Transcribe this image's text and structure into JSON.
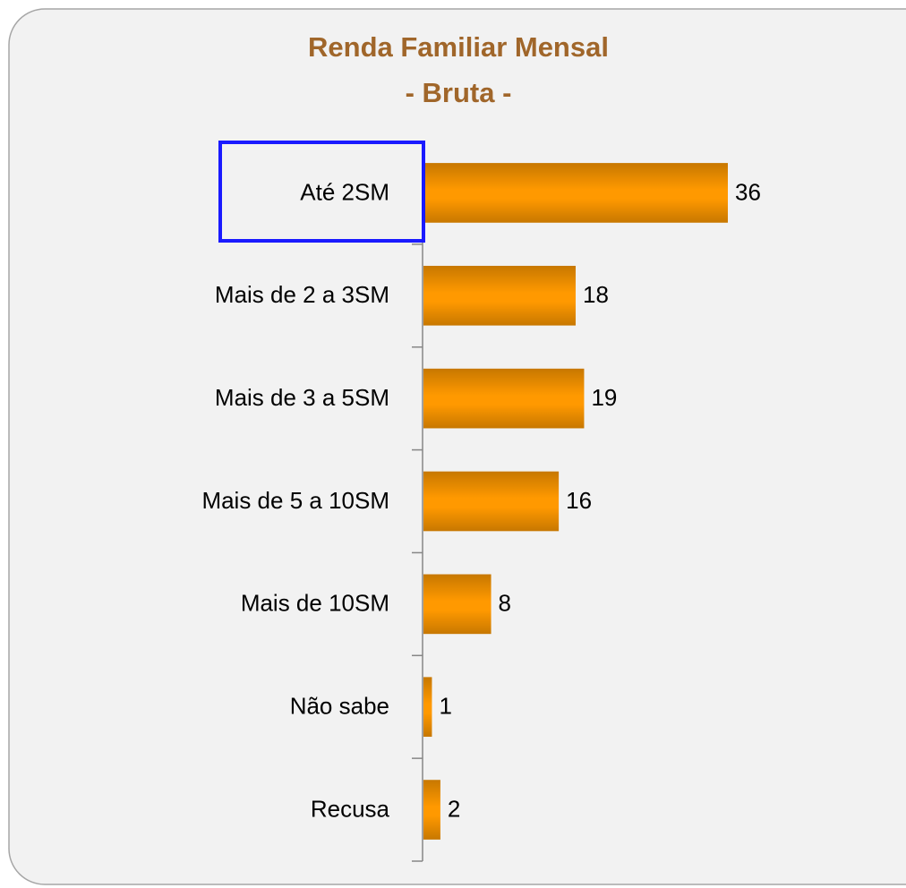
{
  "chart_data": {
    "type": "bar",
    "orientation": "horizontal",
    "title": [
      "Renda Familiar Mensal",
      "- Bruta -"
    ],
    "categories": [
      "Até 2SM",
      "Mais de 2 a 3SM",
      "Mais de 3 a 5SM",
      "Mais de 5 a 10SM",
      "Mais de 10SM",
      "Não sabe",
      "Recusa"
    ],
    "values": [
      36,
      18,
      19,
      16,
      8,
      1,
      2
    ],
    "color": "#ff9900"
  }
}
